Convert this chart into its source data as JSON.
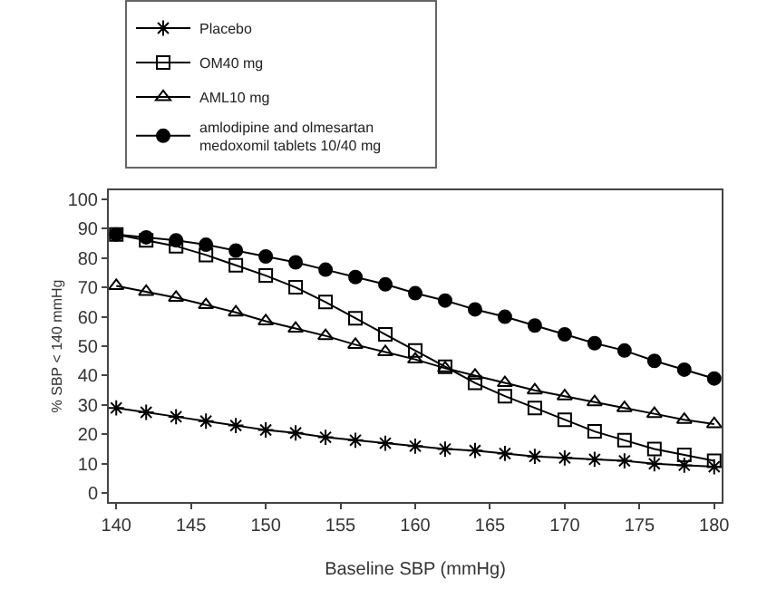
{
  "chart_data": {
    "type": "line",
    "xlabel": "Baseline SBP (mmHg)",
    "ylabel": "% SBP < 140 mmHg",
    "x": [
      140,
      142,
      144,
      146,
      148,
      150,
      152,
      154,
      156,
      158,
      160,
      162,
      164,
      166,
      168,
      170,
      172,
      174,
      176,
      178,
      180
    ],
    "series": [
      {
        "name": "Placebo",
        "color": "#000000",
        "marker": "cross",
        "values": [
          29,
          27.5,
          26,
          24.5,
          23,
          21.5,
          20.5,
          19,
          18,
          17,
          16,
          15,
          14.5,
          13.5,
          12.5,
          12,
          11.5,
          11,
          10,
          9.5,
          9
        ]
      },
      {
        "name": "OM40 mg",
        "color": "#000000",
        "marker": "square",
        "values": [
          88,
          86,
          84,
          81,
          77.5,
          74,
          70,
          65,
          59.5,
          54,
          48.5,
          43,
          37.5,
          33,
          29,
          25,
          21,
          18,
          15,
          13,
          11
        ]
      },
      {
        "name": "AML10 mg",
        "color": "#000000",
        "marker": "triangle",
        "values": [
          70.5,
          68.5,
          66.5,
          64,
          61.5,
          58.5,
          56,
          53.5,
          50.5,
          48,
          45.5,
          42.5,
          40,
          37.5,
          35,
          33,
          31,
          29,
          27,
          25,
          23.5
        ]
      },
      {
        "name": "amlodipine and olmesartan medoxomil tablets 10/40 mg",
        "color": "#000000",
        "marker": "circle",
        "values": [
          88,
          87,
          86,
          84.5,
          82.5,
          80.5,
          78.5,
          76,
          73.5,
          71,
          68,
          65.5,
          62.5,
          60,
          57,
          54,
          51,
          48.5,
          45,
          42,
          39
        ]
      }
    ],
    "xlim": [
      139.5,
      180.5
    ],
    "xticks": [
      140,
      145,
      150,
      155,
      160,
      165,
      170,
      175,
      180
    ],
    "ylim": [
      -3,
      103
    ],
    "yticks": [
      0,
      10,
      20,
      30,
      40,
      50,
      60,
      70,
      80,
      90,
      100
    ],
    "grid": false,
    "legend": "top",
    "line_style": "solid"
  }
}
